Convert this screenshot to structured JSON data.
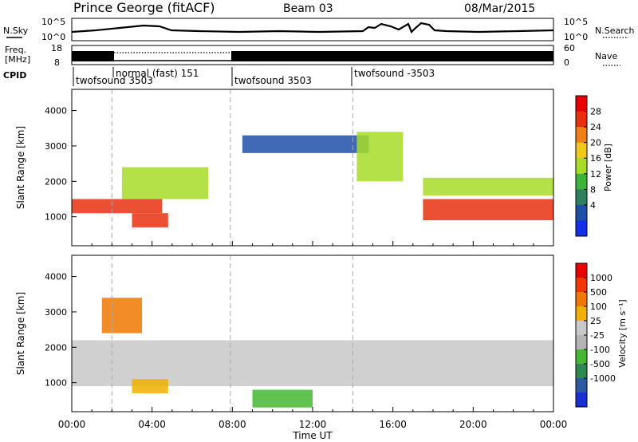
{
  "header": {
    "station": "Prince George (fitACF)",
    "beam": "Beam 03",
    "date": "08/Mar/2015"
  },
  "noise_panel": {
    "left_label": "N.Sky",
    "left_ticks": [
      "10^5",
      "10^0"
    ],
    "right_label": "N.Search",
    "right_ticks": [
      "10^5",
      "10^0"
    ]
  },
  "freq_panel": {
    "left_label_1": "Freq.",
    "left_label_2": "[MHz]",
    "left_ticks": [
      "18",
      "8"
    ],
    "right_label": "Nave",
    "right_ticks": [
      "60",
      "0"
    ]
  },
  "cpid": {
    "label": "CPID",
    "segments": [
      {
        "start_hour": 0.0,
        "name": "twofsound 3503"
      },
      {
        "start_hour": 2.0,
        "name": "normal (fast) 151"
      },
      {
        "start_hour": 7.9,
        "name": "twofsound 3503"
      },
      {
        "start_hour": 14.0,
        "name": "twofsound -3503"
      }
    ]
  },
  "power_panel": {
    "ylabel": "Slant Range [km]",
    "yticks": [
      "1000",
      "2000",
      "3000",
      "4000"
    ],
    "colorbar_label": "Power [dB]",
    "colorbar_ticks": [
      "4",
      "8",
      "12",
      "16",
      "20",
      "24",
      "28"
    ],
    "colorbar_colors": [
      "#1230e8",
      "#1e50a8",
      "#2e8060",
      "#3cb43c",
      "#a8dc28",
      "#f0c818",
      "#f08018",
      "#e83010",
      "#e80000"
    ]
  },
  "velocity_panel": {
    "ylabel": "Slant Range [km]",
    "yticks": [
      "1000",
      "2000",
      "3000",
      "4000"
    ],
    "colorbar_label": "Velocity [m s⁻¹]",
    "colorbar_ticks": [
      "1000",
      "500",
      "100",
      "25",
      "-25",
      "-100",
      "-500",
      "-1000"
    ],
    "colorbar_colors": [
      "#1830d0",
      "#2a5aa0",
      "#2e8850",
      "#44b830",
      "#b4b4b4",
      "#c8c8c8",
      "#f0b000",
      "#f07800",
      "#f03800",
      "#e80000"
    ]
  },
  "xaxis": {
    "label": "Time UT",
    "ticks": [
      "00:00",
      "04:00",
      "08:00",
      "12:00",
      "16:00",
      "20:00",
      "00:00"
    ]
  },
  "chart_data": {
    "type": "heatmap",
    "x_range_hours": [
      0,
      24
    ],
    "y_range_km": [
      180,
      4600
    ],
    "time_markers_hours": [
      2.0,
      7.9,
      14.0
    ],
    "power_bands": [
      {
        "t0": 0.0,
        "t1": 4.5,
        "r0": 1100,
        "r1": 1500,
        "level": "high"
      },
      {
        "t0": 2.5,
        "t1": 6.8,
        "r0": 1500,
        "r1": 2400,
        "level": "medium"
      },
      {
        "t0": 3.0,
        "t1": 4.8,
        "r0": 700,
        "r1": 1100,
        "level": "high"
      },
      {
        "t0": 8.5,
        "t1": 14.8,
        "r0": 2800,
        "r1": 3300,
        "level": "low"
      },
      {
        "t0": 14.2,
        "t1": 16.5,
        "r0": 2000,
        "r1": 3400,
        "level": "medium"
      },
      {
        "t0": 17.5,
        "t1": 24.0,
        "r0": 900,
        "r1": 1500,
        "level": "high"
      },
      {
        "t0": 17.5,
        "t1": 24.0,
        "r0": 1600,
        "r1": 2100,
        "level": "medium"
      }
    ],
    "velocity_bands": [
      {
        "t0": 0.0,
        "t1": 24.0,
        "r0": 900,
        "r1": 2200,
        "velocity": "near zero"
      },
      {
        "t0": 3.0,
        "t1": 4.8,
        "r0": 700,
        "r1": 1100,
        "velocity": "-300"
      },
      {
        "t0": 1.5,
        "t1": 3.5,
        "r0": 2400,
        "r1": 3400,
        "velocity": "-100"
      },
      {
        "t0": 9.0,
        "t1": 12.0,
        "r0": 300,
        "r1": 800,
        "velocity": "+100"
      }
    ]
  }
}
